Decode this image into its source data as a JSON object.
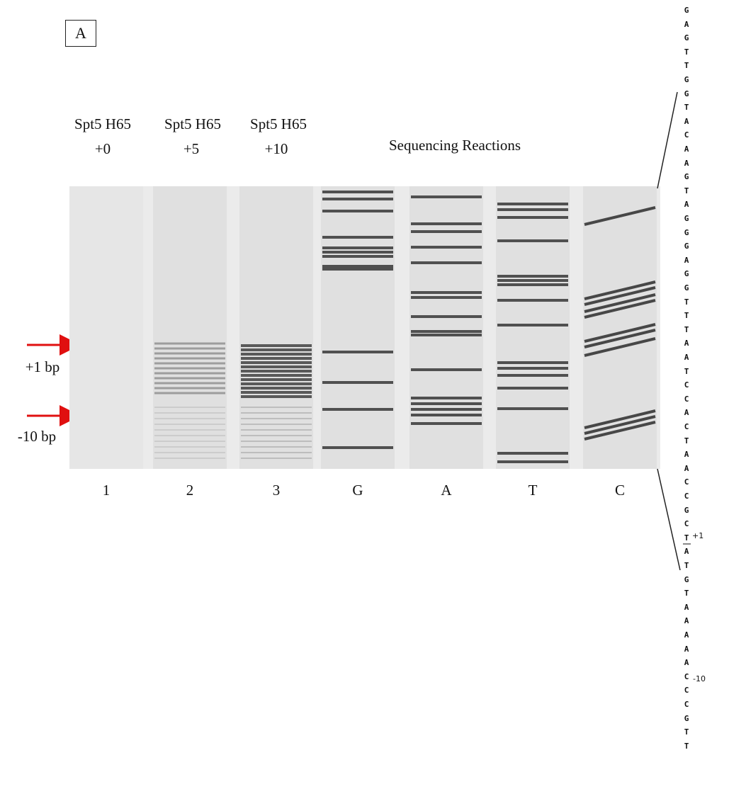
{
  "panel_label": "A",
  "lane_headers": [
    {
      "name": "Spt5 H65",
      "condition": "+0"
    },
    {
      "name": "Spt5 H65",
      "condition": "+5"
    },
    {
      "name": "Spt5 H65",
      "condition": "+10"
    }
  ],
  "group_header": "Sequencing Reactions",
  "arrows": [
    {
      "label": "+1 bp"
    },
    {
      "label": "-10 bp"
    }
  ],
  "lane_labels": [
    "1",
    "2",
    "3",
    "G",
    "A",
    "T",
    "C"
  ],
  "sequence": [
    "G",
    "A",
    "G",
    "T",
    "T",
    "G",
    "G",
    "T",
    "A",
    "C",
    "A",
    "A",
    "G",
    "T",
    "A",
    "G",
    "G",
    "G",
    "A",
    "G",
    "G",
    "T",
    "T",
    "T",
    "A",
    "A",
    "T",
    "C",
    "C",
    "A",
    "C",
    "T",
    "A",
    "A",
    "C",
    "C",
    "G",
    "C",
    "T",
    "A",
    "T",
    "G",
    "T",
    "A",
    "A",
    "A",
    "A",
    "A",
    "C",
    "C",
    "C",
    "G",
    "T",
    "T"
  ],
  "sequence_marks": [
    {
      "label": "+1"
    },
    {
      "label": "-10"
    }
  ]
}
